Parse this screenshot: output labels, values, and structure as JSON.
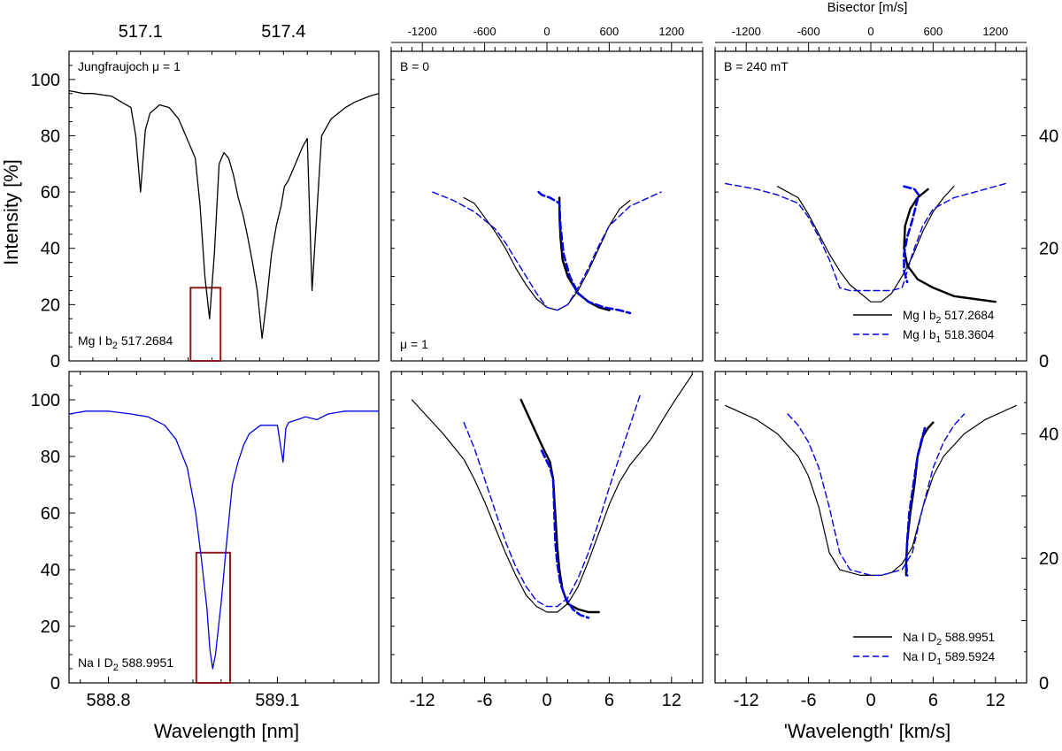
{
  "labels": {
    "y_left": "Intensity [%]",
    "x_left": "Wavelength [nm]",
    "x_right": "'Wavelength' [km/s]",
    "top_bisector": "Bisector [m/s]"
  },
  "colors": {
    "black": "#000000",
    "blue": "#0000e6",
    "box": "#8b1a1a"
  },
  "chart_data": [
    {
      "id": "p1",
      "type": "line",
      "panel": "top-left",
      "annotation": "Jungfraujoch μ = 1",
      "line_label_pre": "Mg I b",
      "line_label_sub": "2",
      "line_label_post": " 517.2684",
      "top_ticks": [
        {
          "value": 517.1,
          "label": "517.1"
        },
        {
          "value": 517.4,
          "label": "517.4"
        }
      ],
      "xlim": [
        516.95,
        517.6
      ],
      "ylim": [
        0,
        110
      ],
      "yticks": [
        0,
        20,
        40,
        60,
        80,
        100
      ],
      "box": {
        "x": [
          517.205,
          517.268
        ],
        "y": [
          0,
          26
        ]
      },
      "series": [
        {
          "color": "black",
          "dash": false,
          "x": [
            516.95,
            516.98,
            517.0,
            517.04,
            517.06,
            517.08,
            517.09,
            517.1,
            517.11,
            517.12,
            517.14,
            517.16,
            517.18,
            517.2,
            517.215,
            517.225,
            517.235,
            517.245,
            517.255,
            517.265,
            517.275,
            517.285,
            517.295,
            517.305,
            517.315,
            517.325,
            517.335,
            517.345,
            517.355,
            517.365,
            517.375,
            517.385,
            517.395,
            517.402,
            517.41,
            517.42,
            517.43,
            517.44,
            517.45,
            517.46,
            517.48,
            517.5,
            517.53,
            517.55,
            517.58,
            517.6
          ],
          "y": [
            96,
            95,
            95,
            94,
            92,
            90,
            80,
            60,
            82,
            88,
            91,
            90,
            86,
            78,
            72,
            55,
            30,
            15,
            38,
            70,
            74,
            72,
            66,
            58,
            52,
            44,
            35,
            25,
            8,
            22,
            38,
            48,
            55,
            62,
            64,
            68,
            72,
            76,
            79,
            25,
            80,
            86,
            90,
            92,
            94,
            95
          ]
        }
      ]
    },
    {
      "id": "p2",
      "type": "line",
      "panel": "top-middle",
      "annotation": "B = 0",
      "annotation2": "μ = 1",
      "top_ticks": [
        {
          "value": -1200,
          "label": "-1200"
        },
        {
          "value": -600,
          "label": "-600"
        },
        {
          "value": 0,
          "label": "0"
        },
        {
          "value": 600,
          "label": "600"
        },
        {
          "value": 1200,
          "label": "1200"
        }
      ],
      "xlim": [
        -15,
        15
      ],
      "ylim": [
        0,
        110
      ],
      "bisector_lim": [
        -1500,
        1500
      ],
      "series": [
        {
          "color": "black",
          "dash": false,
          "width": 1.2,
          "x": [
            -8,
            -7,
            -6,
            -5,
            -4,
            -3,
            -2,
            -1,
            0,
            1,
            2,
            3,
            4,
            5,
            6,
            7,
            8
          ],
          "y": [
            58,
            56,
            51,
            46,
            40,
            33,
            27,
            22,
            19,
            18,
            20,
            25,
            32,
            40,
            48,
            54,
            57
          ]
        },
        {
          "color": "blue",
          "dash": true,
          "width": 1.4,
          "x": [
            -11,
            -9,
            -7,
            -5,
            -4,
            -3,
            -2,
            -1,
            0,
            1,
            2,
            3,
            4,
            5,
            6,
            8,
            11
          ],
          "y": [
            60,
            57,
            53,
            47,
            42,
            36,
            30,
            24,
            19,
            18,
            20,
            26,
            33,
            41,
            48,
            55,
            60
          ]
        },
        {
          "color": "black",
          "dash": false,
          "width": 2.4,
          "x": [
            1.2,
            1.2,
            1.3,
            1.5,
            2,
            3,
            4,
            5,
            6
          ],
          "y": [
            58,
            52,
            44,
            36,
            30,
            24,
            21,
            19,
            18
          ]
        },
        {
          "color": "blue",
          "dash": true,
          "width": 2.6,
          "x": [
            -0.8,
            -0.5,
            0.3,
            1.2,
            1.3,
            1.6,
            2.2,
            3,
            4,
            5.5,
            7,
            8
          ],
          "y": [
            60,
            59,
            58,
            56,
            48,
            38,
            30,
            24,
            21,
            19,
            18,
            17
          ]
        }
      ]
    },
    {
      "id": "p3",
      "type": "line",
      "panel": "top-right",
      "annotation": "B = 240 mT",
      "top_ticks": [
        {
          "value": -1200,
          "label": "-1200"
        },
        {
          "value": -600,
          "label": "-600"
        },
        {
          "value": 0,
          "label": "0"
        },
        {
          "value": 600,
          "label": "600"
        },
        {
          "value": 1200,
          "label": "1200"
        }
      ],
      "xlim": [
        -15,
        15
      ],
      "ylim": [
        0,
        110
      ],
      "bisector_lim": [
        -1500,
        1500
      ],
      "right_ticks": [
        {
          "value": 0,
          "label": "0"
        },
        {
          "value": 20,
          "label": "20"
        },
        {
          "value": 40,
          "label": "40"
        }
      ],
      "right_lim": [
        0,
        55
      ],
      "legend": [
        {
          "color": "black",
          "dash": false,
          "pre": "Mg I b",
          "sub": "2",
          "post": " 517.2684"
        },
        {
          "color": "blue",
          "dash": true,
          "pre": "Mg I b",
          "sub": "1",
          "post": " 518.3604"
        }
      ],
      "series": [
        {
          "color": "black",
          "dash": false,
          "width": 1.2,
          "x": [
            -9,
            -7,
            -6,
            -5,
            -4,
            -3,
            -2,
            -1,
            0,
            1,
            2,
            3,
            4,
            5,
            6,
            7,
            8
          ],
          "y": [
            62,
            58,
            52,
            45,
            38,
            32,
            27,
            24,
            21,
            21,
            24,
            30,
            37,
            46,
            53,
            58,
            62
          ]
        },
        {
          "color": "blue",
          "dash": true,
          "width": 1.4,
          "x": [
            -14,
            -11,
            -9,
            -7,
            -6,
            -5,
            -4,
            -3.2,
            -3,
            -2,
            0,
            2,
            3,
            3.2,
            4,
            5,
            6,
            8,
            11,
            13
          ],
          "y": [
            63,
            61,
            59,
            56,
            51,
            44,
            36,
            28,
            26,
            25,
            25,
            25,
            26,
            28,
            38,
            48,
            54,
            58,
            61,
            63
          ]
        },
        {
          "color": "black",
          "dash": false,
          "width": 2.4,
          "x": [
            5.5,
            4.5,
            3.8,
            3.3,
            3.2,
            3.5,
            4.5,
            6,
            8,
            10,
            12
          ],
          "y": [
            61,
            58,
            54,
            48,
            40,
            34,
            29,
            26,
            23,
            22,
            21
          ]
        },
        {
          "color": "blue",
          "dash": true,
          "width": 2.6,
          "x": [
            3.2,
            4.2,
            4.6,
            4.4,
            4,
            3.5,
            3.2,
            3.2,
            3.5
          ],
          "y": [
            62,
            61,
            59,
            56,
            50,
            44,
            38,
            32,
            28
          ]
        }
      ]
    },
    {
      "id": "p4",
      "type": "line",
      "panel": "bottom-left",
      "line_label_pre": "Na I D",
      "line_label_sub": "2",
      "line_label_post": " 588.9951",
      "xticks": [
        {
          "value": 588.8,
          "label": "588.8"
        },
        {
          "value": 589.1,
          "label": "589.1"
        }
      ],
      "xlim": [
        588.73,
        589.28
      ],
      "ylim": [
        0,
        110
      ],
      "yticks": [
        0,
        20,
        40,
        60,
        80,
        100
      ],
      "box": {
        "x": [
          588.956,
          589.016
        ],
        "y": [
          0,
          46
        ]
      },
      "series": [
        {
          "color": "blue",
          "dash": false,
          "x": [
            588.73,
            588.76,
            588.8,
            588.84,
            588.87,
            588.9,
            588.92,
            588.94,
            588.955,
            588.965,
            588.975,
            588.98,
            588.985,
            588.99,
            589.0,
            589.01,
            589.02,
            589.03,
            589.04,
            589.05,
            589.07,
            589.1,
            589.11,
            589.115,
            589.12,
            589.15,
            589.17,
            589.19,
            589.22,
            589.25,
            589.28
          ],
          "y": [
            95,
            96,
            96,
            95,
            94,
            91,
            86,
            76,
            60,
            44,
            26,
            12,
            5,
            10,
            28,
            50,
            70,
            78,
            84,
            88,
            91,
            91,
            78,
            90,
            92,
            94,
            93,
            95,
            96,
            96,
            96
          ]
        }
      ]
    },
    {
      "id": "p5",
      "type": "line",
      "panel": "bottom-middle",
      "xticks": [
        {
          "value": -12,
          "label": "-12"
        },
        {
          "value": -6,
          "label": "-6"
        },
        {
          "value": 0,
          "label": "0"
        },
        {
          "value": 6,
          "label": "6"
        },
        {
          "value": 12,
          "label": "12"
        }
      ],
      "xlim": [
        -15,
        15
      ],
      "ylim": [
        0,
        110
      ],
      "series": [
        {
          "color": "black",
          "dash": false,
          "width": 1.2,
          "x": [
            -13,
            -10,
            -8,
            -7,
            -6,
            -5,
            -4,
            -3,
            -2,
            -1,
            0,
            1,
            2,
            3,
            4,
            5,
            6,
            7,
            8,
            10,
            12,
            14
          ],
          "y": [
            100,
            88,
            79,
            72,
            64,
            55,
            46,
            38,
            31,
            27,
            25,
            25,
            28,
            34,
            43,
            53,
            63,
            71,
            77,
            86,
            98,
            109
          ]
        },
        {
          "color": "blue",
          "dash": true,
          "width": 1.4,
          "x": [
            -8,
            -7,
            -6,
            -5,
            -4,
            -3,
            -2,
            -1,
            0,
            1,
            2,
            3,
            4,
            5,
            6,
            7,
            8,
            9
          ],
          "y": [
            92,
            83,
            72,
            61,
            50,
            41,
            34,
            29,
            27,
            27,
            30,
            37,
            46,
            57,
            69,
            80,
            91,
            102
          ]
        },
        {
          "color": "black",
          "dash": false,
          "width": 2.4,
          "x": [
            -2.5,
            -1.5,
            -0.5,
            0.3,
            0.6,
            0.8,
            1,
            1.2,
            1.5,
            2,
            3,
            4,
            5
          ],
          "y": [
            100,
            92,
            84,
            78,
            72,
            60,
            48,
            40,
            33,
            28,
            26,
            25,
            25
          ]
        },
        {
          "color": "blue",
          "dash": true,
          "width": 2.6,
          "x": [
            -0.5,
            0.3,
            0.6,
            0.7,
            0.8,
            1,
            1.3,
            1.8,
            2.5,
            3.2,
            4
          ],
          "y": [
            82,
            76,
            72,
            62,
            50,
            42,
            35,
            30,
            26,
            24,
            23
          ]
        }
      ]
    },
    {
      "id": "p6",
      "type": "line",
      "panel": "bottom-right",
      "xticks": [
        {
          "value": -12,
          "label": "-12"
        },
        {
          "value": -6,
          "label": "-6"
        },
        {
          "value": 0,
          "label": "0"
        },
        {
          "value": 6,
          "label": "6"
        },
        {
          "value": 12,
          "label": "12"
        }
      ],
      "xlim": [
        -15,
        15
      ],
      "ylim": [
        0,
        110
      ],
      "right_ticks": [
        {
          "value": 0,
          "label": "0"
        },
        {
          "value": 20,
          "label": "20"
        },
        {
          "value": 40,
          "label": "40"
        }
      ],
      "right_lim": [
        0,
        50
      ],
      "legend": [
        {
          "color": "black",
          "dash": false,
          "pre": "Na I D",
          "sub": "2",
          "post": " 588.9951"
        },
        {
          "color": "blue",
          "dash": true,
          "pre": "Na I D",
          "sub": "1",
          "post": " 589.5924"
        }
      ],
      "series": [
        {
          "color": "black",
          "dash": false,
          "width": 1.2,
          "x": [
            -14,
            -11,
            -9,
            -7,
            -6,
            -5,
            -4,
            -3,
            -2,
            -1,
            0,
            1,
            2,
            3,
            4,
            5,
            6,
            7,
            9,
            11,
            14
          ],
          "y": [
            98,
            93,
            88,
            80,
            73,
            62,
            46,
            40,
            39,
            38,
            38,
            38,
            39,
            42,
            48,
            62,
            73,
            80,
            88,
            93,
            98
          ]
        },
        {
          "color": "blue",
          "dash": true,
          "width": 1.4,
          "x": [
            -8,
            -7,
            -6,
            -5,
            -4,
            -3,
            -2,
            -1,
            0,
            1,
            2,
            3,
            4,
            5,
            6,
            7,
            8,
            9
          ],
          "y": [
            95,
            91,
            85,
            76,
            62,
            46,
            40,
            39,
            38,
            38,
            39,
            40,
            46,
            62,
            76,
            85,
            91,
            95
          ]
        },
        {
          "color": "black",
          "dash": false,
          "width": 2.4,
          "x": [
            6,
            5.5,
            5,
            4.8,
            4.5,
            4.2,
            3.8,
            3.5,
            3.4,
            3.4
          ],
          "y": [
            92,
            90,
            87,
            84,
            80,
            70,
            60,
            50,
            42,
            38
          ]
        },
        {
          "color": "blue",
          "dash": true,
          "width": 2.6,
          "x": [
            5.2,
            4.9,
            4.5,
            4.1,
            3.7,
            3.5,
            3.4,
            3.5
          ],
          "y": [
            90,
            86,
            80,
            70,
            60,
            50,
            42,
            38
          ]
        }
      ]
    }
  ]
}
